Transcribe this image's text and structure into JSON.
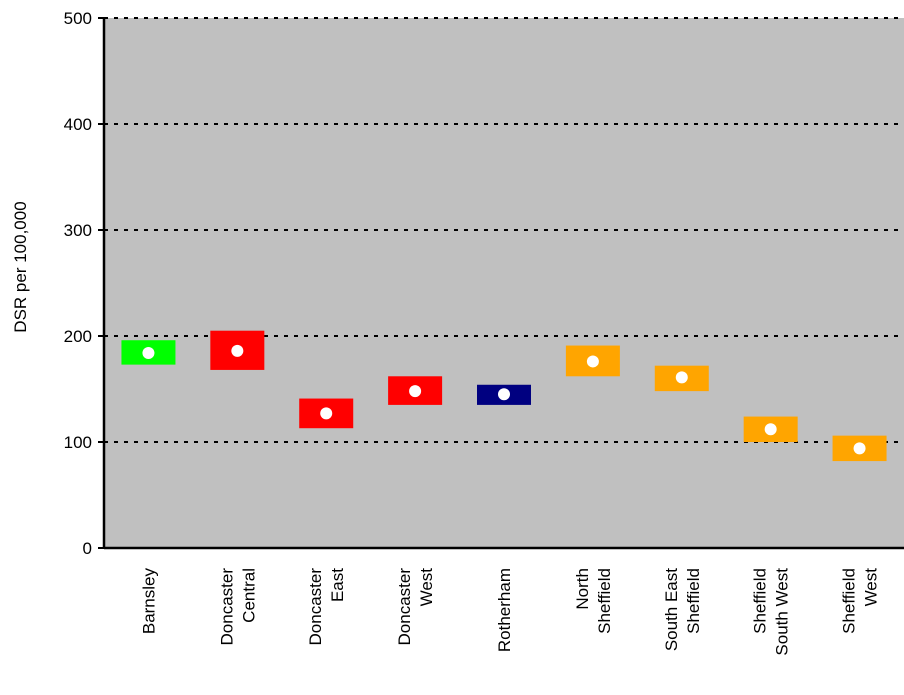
{
  "chart_data": {
    "type": "scatter",
    "ylabel": "DSR per 100,000",
    "xlabel": "",
    "title": "",
    "ylim": [
      0,
      500
    ],
    "yticks": [
      "0",
      "100",
      "200",
      "300",
      "400",
      "500"
    ],
    "grid": "horizontal dashed",
    "plot_background": "#c0c0c0",
    "categories": [
      {
        "lines": [
          "Barnsley"
        ]
      },
      {
        "lines": [
          "Doncaster",
          "Central"
        ]
      },
      {
        "lines": [
          "Doncaster",
          "East"
        ]
      },
      {
        "lines": [
          "Doncaster",
          "West"
        ]
      },
      {
        "lines": [
          "Rotherham"
        ]
      },
      {
        "lines": [
          "North",
          "Sheffield"
        ]
      },
      {
        "lines": [
          "South East",
          "Sheffield"
        ]
      },
      {
        "lines": [
          "Sheffield",
          "South West"
        ]
      },
      {
        "lines": [
          "Sheffield",
          "West"
        ]
      }
    ],
    "points": [
      {
        "value": 184,
        "lower": 173,
        "upper": 196,
        "color": "#00ff00"
      },
      {
        "value": 186,
        "lower": 168,
        "upper": 205,
        "color": "#ff0000"
      },
      {
        "value": 127,
        "lower": 113,
        "upper": 141,
        "color": "#ff0000"
      },
      {
        "value": 148,
        "lower": 135,
        "upper": 162,
        "color": "#ff0000"
      },
      {
        "value": 145,
        "lower": 135,
        "upper": 154,
        "color": "#000080"
      },
      {
        "value": 176,
        "lower": 162,
        "upper": 191,
        "color": "#ffa500"
      },
      {
        "value": 161,
        "lower": 148,
        "upper": 172,
        "color": "#ffa500"
      },
      {
        "value": 112,
        "lower": 100,
        "upper": 124,
        "color": "#ffa500"
      },
      {
        "value": 94,
        "lower": 82,
        "upper": 106,
        "color": "#ffa500"
      }
    ]
  }
}
